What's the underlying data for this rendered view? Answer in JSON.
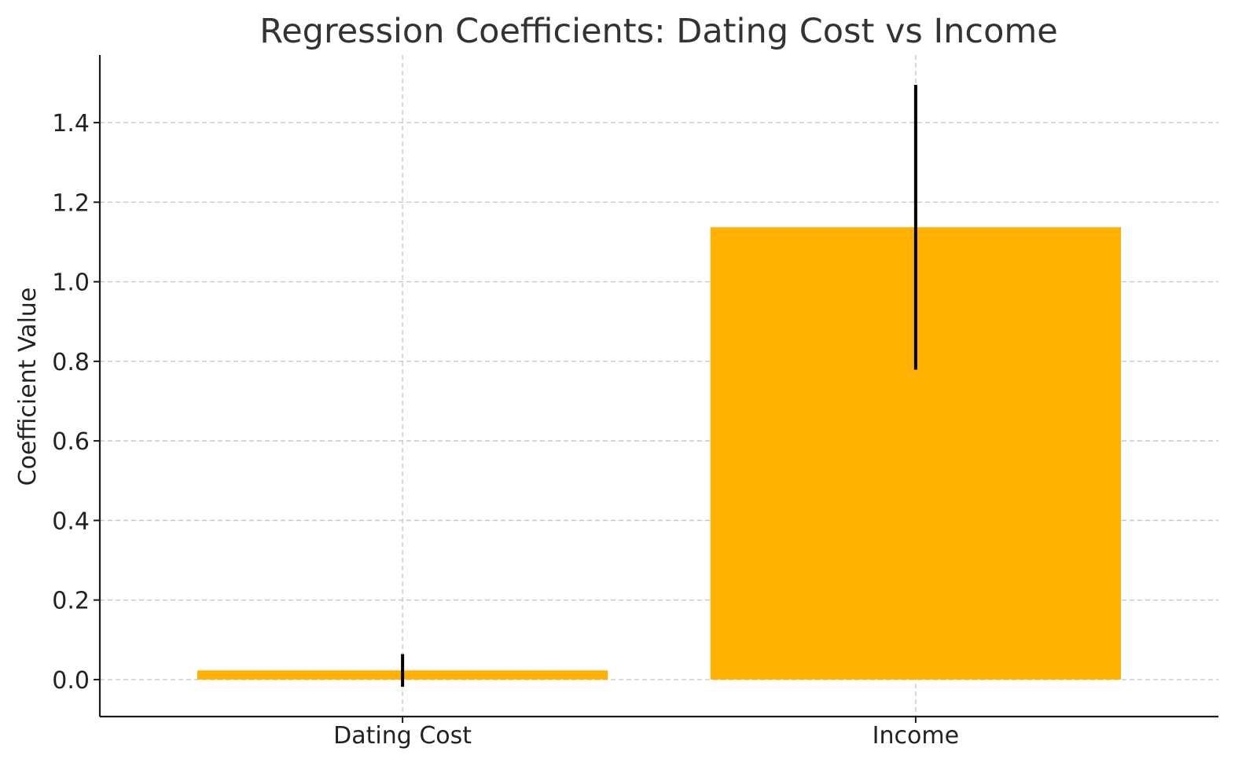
{
  "chart_data": {
    "type": "bar",
    "title": "Regression Coefficients: Dating Cost vs Income",
    "xlabel": "",
    "ylabel": "Coefficient Value",
    "categories": [
      "Dating Cost",
      "Income"
    ],
    "values": [
      0.023,
      1.137
    ],
    "errors": [
      0.041,
      0.358
    ],
    "ylim": [
      -0.093,
      1.57
    ],
    "yticks": [
      0.0,
      0.2,
      0.4,
      0.6,
      0.8,
      1.0,
      1.2,
      1.4
    ],
    "ytick_labels": [
      "0.0",
      "0.2",
      "0.4",
      "0.6",
      "0.8",
      "1.0",
      "1.2",
      "1.4"
    ],
    "grid": true,
    "bar_color": "#FFB000",
    "error_color": "#000000"
  }
}
